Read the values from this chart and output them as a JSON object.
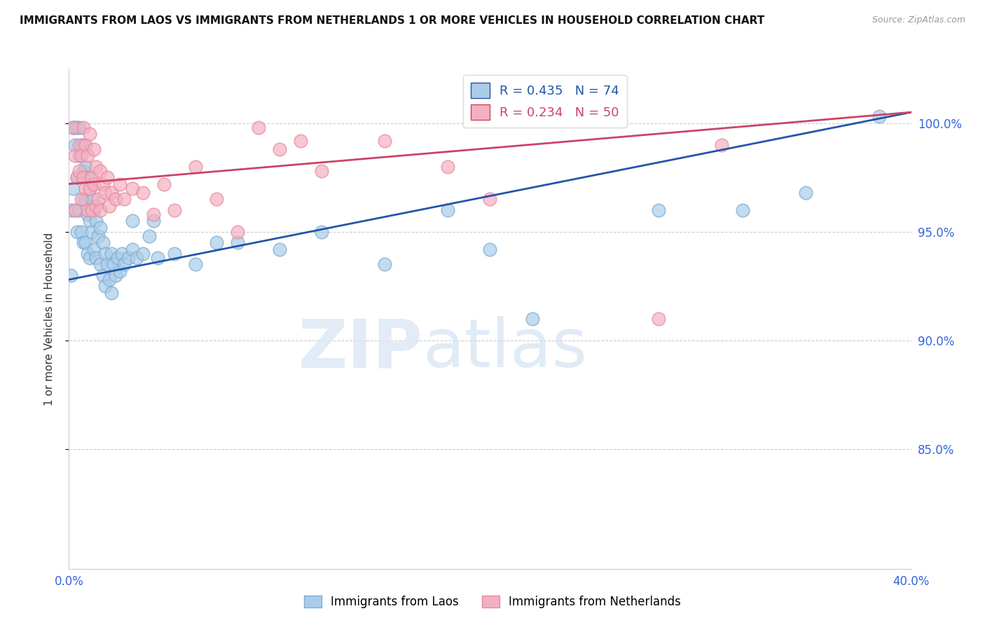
{
  "title": "IMMIGRANTS FROM LAOS VS IMMIGRANTS FROM NETHERLANDS 1 OR MORE VEHICLES IN HOUSEHOLD CORRELATION CHART",
  "source": "Source: ZipAtlas.com",
  "ylabel": "1 or more Vehicles in Household",
  "x_min": 0.0,
  "x_max": 0.4,
  "y_min": 0.795,
  "y_max": 1.025,
  "yticks": [
    0.85,
    0.9,
    0.95,
    1.0
  ],
  "ytick_labels": [
    "85.0%",
    "90.0%",
    "95.0%",
    "100.0%"
  ],
  "blue_R": 0.435,
  "blue_N": 74,
  "pink_R": 0.234,
  "pink_N": 50,
  "blue_color": "#aacce8",
  "pink_color": "#f4b0c0",
  "blue_edge_color": "#7aadd4",
  "pink_edge_color": "#e888a0",
  "blue_line_color": "#2255aa",
  "pink_line_color": "#cc4466",
  "legend_label_blue": "Immigrants from Laos",
  "legend_label_pink": "Immigrants from Netherlands",
  "blue_trend_x0": 0.0,
  "blue_trend_y0": 0.928,
  "blue_trend_x1": 0.4,
  "blue_trend_y1": 1.005,
  "pink_trend_x0": 0.0,
  "pink_trend_y0": 0.972,
  "pink_trend_x1": 0.4,
  "pink_trend_y1": 1.005,
  "blue_x": [
    0.001,
    0.001,
    0.002,
    0.002,
    0.003,
    0.003,
    0.003,
    0.004,
    0.004,
    0.004,
    0.005,
    0.005,
    0.005,
    0.006,
    0.006,
    0.006,
    0.007,
    0.007,
    0.007,
    0.007,
    0.008,
    0.008,
    0.008,
    0.009,
    0.009,
    0.009,
    0.01,
    0.01,
    0.01,
    0.011,
    0.011,
    0.012,
    0.012,
    0.013,
    0.013,
    0.014,
    0.015,
    0.015,
    0.016,
    0.016,
    0.017,
    0.017,
    0.018,
    0.019,
    0.02,
    0.02,
    0.021,
    0.022,
    0.023,
    0.024,
    0.025,
    0.026,
    0.028,
    0.03,
    0.03,
    0.032,
    0.035,
    0.038,
    0.04,
    0.042,
    0.05,
    0.06,
    0.07,
    0.08,
    0.1,
    0.12,
    0.15,
    0.18,
    0.2,
    0.22,
    0.28,
    0.32,
    0.35,
    0.385
  ],
  "blue_y": [
    0.96,
    0.93,
    0.998,
    0.97,
    0.998,
    0.99,
    0.96,
    0.998,
    0.975,
    0.95,
    0.998,
    0.985,
    0.96,
    0.99,
    0.975,
    0.95,
    0.99,
    0.978,
    0.965,
    0.945,
    0.98,
    0.965,
    0.945,
    0.975,
    0.958,
    0.94,
    0.97,
    0.955,
    0.938,
    0.965,
    0.95,
    0.96,
    0.942,
    0.955,
    0.938,
    0.948,
    0.952,
    0.935,
    0.945,
    0.93,
    0.94,
    0.925,
    0.935,
    0.928,
    0.94,
    0.922,
    0.935,
    0.93,
    0.938,
    0.932,
    0.94,
    0.935,
    0.938,
    0.942,
    0.955,
    0.938,
    0.94,
    0.948,
    0.955,
    0.938,
    0.94,
    0.935,
    0.945,
    0.945,
    0.942,
    0.95,
    0.935,
    0.96,
    0.942,
    0.91,
    0.96,
    0.96,
    0.968,
    1.003
  ],
  "pink_x": [
    0.002,
    0.003,
    0.003,
    0.004,
    0.005,
    0.005,
    0.006,
    0.006,
    0.007,
    0.007,
    0.008,
    0.008,
    0.009,
    0.009,
    0.01,
    0.01,
    0.011,
    0.011,
    0.012,
    0.012,
    0.013,
    0.013,
    0.014,
    0.015,
    0.015,
    0.016,
    0.017,
    0.018,
    0.019,
    0.02,
    0.022,
    0.024,
    0.026,
    0.03,
    0.035,
    0.04,
    0.045,
    0.05,
    0.06,
    0.07,
    0.08,
    0.09,
    0.1,
    0.11,
    0.12,
    0.15,
    0.18,
    0.2,
    0.28,
    0.31
  ],
  "pink_y": [
    0.998,
    0.985,
    0.96,
    0.975,
    0.99,
    0.978,
    0.985,
    0.965,
    0.998,
    0.975,
    0.97,
    0.99,
    0.985,
    0.96,
    0.995,
    0.97,
    0.975,
    0.96,
    0.988,
    0.972,
    0.98,
    0.962,
    0.965,
    0.978,
    0.96,
    0.972,
    0.968,
    0.975,
    0.962,
    0.968,
    0.965,
    0.972,
    0.965,
    0.97,
    0.968,
    0.958,
    0.972,
    0.96,
    0.98,
    0.965,
    0.95,
    0.998,
    0.988,
    0.992,
    0.978,
    0.992,
    0.98,
    0.965,
    0.91,
    0.99
  ]
}
